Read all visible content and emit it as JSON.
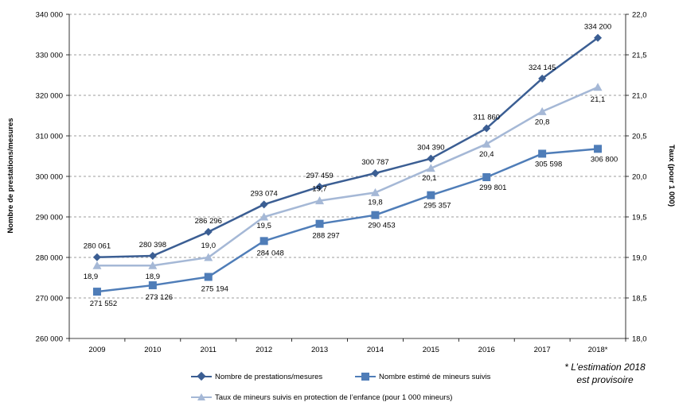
{
  "chart_data": {
    "type": "line",
    "categories": [
      "2009",
      "2010",
      "2011",
      "2012",
      "2013",
      "2014",
      "2015",
      "2016",
      "2017",
      "2018*"
    ],
    "ylabel": "Nombre de prestations/mesures",
    "y2label": "Taux (pour 1 000)",
    "ylim": [
      260000,
      340000
    ],
    "y2lim": [
      18.0,
      22.0
    ],
    "yticks": [
      "260 000",
      "270 000",
      "280 000",
      "290 000",
      "300 000",
      "310 000",
      "320 000",
      "330 000",
      "340 000"
    ],
    "y2ticks": [
      "18,0",
      "18,5",
      "19,0",
      "19,5",
      "20,0",
      "20,5",
      "21,0",
      "21,5",
      "22,0"
    ],
    "grid": true,
    "legend_position": "bottom",
    "series": [
      {
        "name": "Nombre de prestations/mesures",
        "axis": "left",
        "marker": "diamond",
        "color": "#3B5E93",
        "values": [
          280061,
          280398,
          286296,
          293074,
          297459,
          300787,
          304390,
          311860,
          324145,
          334200
        ],
        "labels": [
          "280 061",
          "280 398",
          "286 296",
          "293 074",
          "297 459",
          "300 787",
          "304 390",
          "311 860",
          "324 145",
          "334 200"
        ]
      },
      {
        "name": "Nombre estimé de mineurs suivis",
        "axis": "left",
        "marker": "square",
        "color": "#4F7DB8",
        "values": [
          271552,
          273126,
          275194,
          284048,
          288297,
          290453,
          295357,
          299801,
          305598,
          306800
        ],
        "labels": [
          "271 552",
          "273 126",
          "275 194",
          "284 048",
          "288 297",
          "290 453",
          "295 357",
          "299 801",
          "305 598",
          "306 800"
        ]
      },
      {
        "name": "Taux de mineurs suivis en protection de l’enfance (pour 1 000 mineurs)",
        "axis": "right",
        "marker": "triangle",
        "color": "#A5B8D6",
        "values": [
          18.9,
          18.9,
          19.0,
          19.5,
          19.7,
          19.8,
          20.1,
          20.4,
          20.8,
          21.1
        ],
        "labels": [
          "18,9",
          "18,9",
          "19,0",
          "19,5",
          "19,7",
          "19,8",
          "20,1",
          "20,4",
          "20,8",
          "21,1"
        ]
      }
    ],
    "note_lines": [
      "* L’estimation 2018",
      "est provisoire"
    ]
  }
}
